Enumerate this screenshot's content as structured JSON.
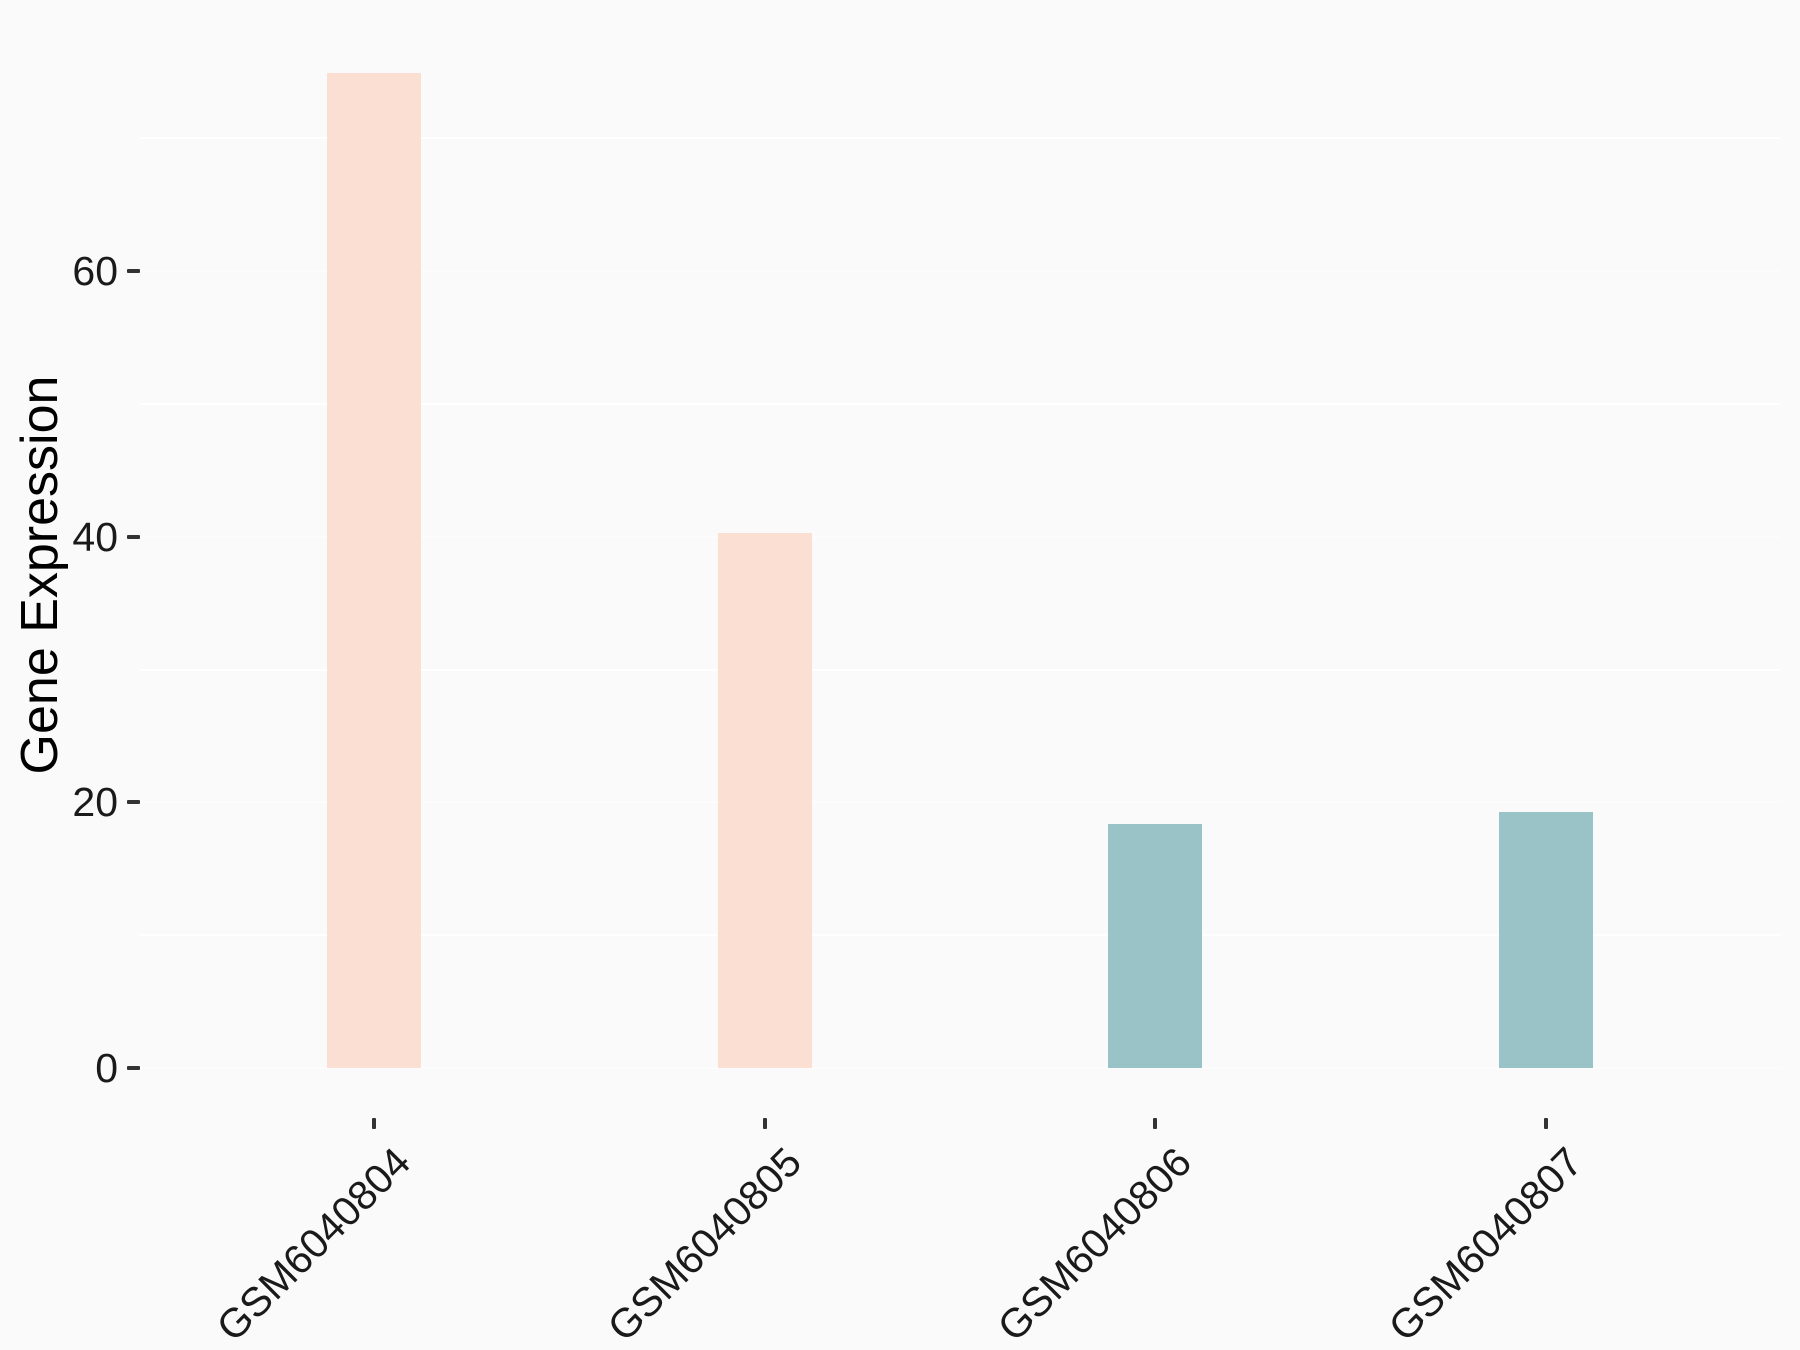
{
  "chart_data": {
    "type": "bar",
    "title": "",
    "xlabel": "",
    "ylabel": "Gene Expression",
    "categories": [
      "GSM6040804",
      "GSM6040805",
      "GSM6040806",
      "GSM6040807"
    ],
    "values": [
      74.9,
      40.3,
      18.4,
      19.3
    ],
    "bar_colors": [
      "#fcdfd3",
      "#fcdfd3",
      "#9ac3c8",
      "#9ac3c8"
    ],
    "y_ticks": [
      0,
      20,
      40,
      60
    ],
    "y_minor_gridlines": [
      10,
      30,
      50,
      70
    ],
    "ylim": [
      -3.75,
      78.75
    ],
    "x_tick_angle_deg": 45,
    "legend": "none",
    "grid": "horizontal white gridlines, no axis lines, no panel border",
    "colors": {
      "background": "#fafafa",
      "gridline": "#ffffff",
      "tick_mark": "#333333",
      "text": "#1a1a1a",
      "peach_group": "#fcdfd3",
      "teal_group": "#9ac3c8"
    }
  }
}
